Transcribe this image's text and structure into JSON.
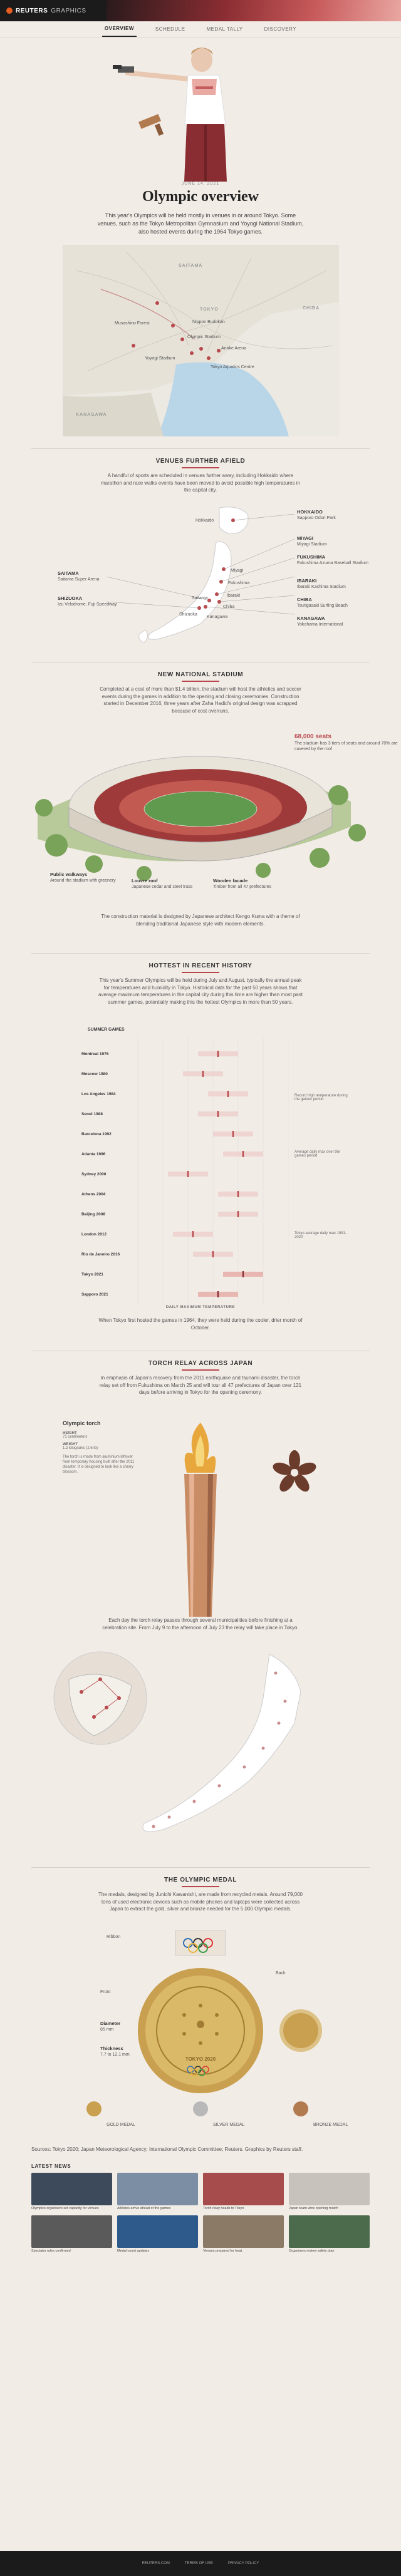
{
  "header": {
    "brand": "REUTERS",
    "brand_sub": "GRAPHICS"
  },
  "nav": {
    "items": [
      "OVERVIEW",
      "SCHEDULE",
      "MEDAL TALLY",
      "DISCOVERY"
    ]
  },
  "title_block": {
    "date": "JUNE 14, 2021",
    "title": "Olympic overview",
    "intro": "This year's Olympics will be held mostly in venues in or around Tokyo. Some venues, such as the Tokyo Metropolitan Gymnasium and Yoyogi National Stadium, also hosted events during the 1964 Tokyo games."
  },
  "map": {
    "regions": [
      "SAITAMA",
      "TOKYO",
      "CHIBA",
      "KANAGAWA"
    ],
    "venues": [
      "Olympic Stadium",
      "Tokyo Aquatics Centre",
      "Ariake Arena",
      "Musashino Forest",
      "Nippon Budokan",
      "Yoyogi Stadium"
    ]
  },
  "away": {
    "title": "VENUES FURTHER AFIELD",
    "text": "A handful of sports are scheduled in venues further away, including Hokkaido where marathon and race walks events have been moved to avoid possible high temperatures in the capital city.",
    "left": [
      {
        "name": "SAITAMA",
        "desc": "Saitama Super Arena"
      },
      {
        "name": "SHIZUOKA",
        "desc": "Izu Velodrome, Fuji Speedway"
      }
    ],
    "right": [
      {
        "name": "HOKKAIDO",
        "desc": "Sapporo Odori Park"
      },
      {
        "name": "MIYAGI",
        "desc": "Miyagi Stadium"
      },
      {
        "name": "FUKUSHIMA",
        "desc": "Fukushima Azuma Baseball Stadium"
      },
      {
        "name": "IBARAKI",
        "desc": "Ibaraki Kashima Stadium"
      },
      {
        "name": "CHIBA",
        "desc": "Tsurigasaki Surfing Beach"
      },
      {
        "name": "KANAGAWA",
        "desc": "Yokohama International"
      }
    ],
    "map_labels": [
      "Hokkaido",
      "Miyagi",
      "Fukushima",
      "Ibaraki",
      "Saitama",
      "Chiba",
      "Shizuoka",
      "Kanagawa"
    ]
  },
  "stadium": {
    "title": "NEW NATIONAL STADIUM",
    "text": "Completed at a cost of more than $1.4 billion, the stadium will host the athletics and soccer events during the games in addition to the opening and closing ceremonies. Construction started in December 2016, three years after Zaha Hadid's original design was scrapped because of cost overruns.",
    "capacity_label": "68,000 seats",
    "capacity_desc": "The stadium has 3 tiers of seats and around 70% are covered by the roof",
    "labels": [
      {
        "title": "Public walkways",
        "desc": "Around the stadium with greenery"
      },
      {
        "title": "Louvre roof",
        "desc": "Japanese cedar and steel truss"
      },
      {
        "title": "Wooden facade",
        "desc": "Timber from all 47 prefectures"
      }
    ],
    "caption": "The construction material is designed by Japanese architect Kengo Kuma with a theme of blending traditional Japanese style with modern elements."
  },
  "heat": {
    "title": "HOTTEST IN RECENT HISTORY",
    "text": "This year's Summer Olympics will be held during July and August, typically the annual peak for temperatures and humidity in Tokyo. Historical data for the past 50 years shows that average maximum temperatures in the capital city during this time are higher than most past summer games, potentially making this the hottest Olympics in more than 50 years.",
    "col_header": "SUMMER GAMES",
    "axis_label": "DAILY MAXIMUM TEMPERATURE",
    "note": "When Tokyo first hosted the games in 1964, they were held during the cooler, drier month of October.",
    "annotations": [
      "Record high temperature during the games period",
      "Average daily max over the games period",
      "Tokyo average daily max 1991-2020"
    ]
  },
  "chart_data": {
    "type": "scatter",
    "title": "HOTTEST IN RECENT HISTORY",
    "xlabel": "DAILY MAXIMUM TEMPERATURE",
    "x_unit": "°C",
    "xlim": [
      10,
      40
    ],
    "categories": [
      "Montreal 1976",
      "Moscow 1980",
      "Los Angeles 1984",
      "Seoul 1988",
      "Barcelona 1992",
      "Atlanta 1996",
      "Sydney 2000",
      "Athens 2004",
      "Beijing 2008",
      "London 2012",
      "Rio de Janeiro 2016",
      "Tokyo 2021",
      "Sapporo 2021"
    ],
    "series": [
      {
        "name": "Average daily max",
        "values": [
          26,
          23,
          28,
          26,
          29,
          31,
          20,
          30,
          30,
          21,
          25,
          31,
          26
        ]
      }
    ]
  },
  "torch": {
    "title": "TORCH RELAY ACROSS JAPAN",
    "text": "In emphasis of Japan's recovery from the 2011 earthquake and tsunami disaster, the torch relay set off from Fukushima on March 25 and will tour all 47 prefectures of Japan over 121 days before arriving in Tokyo for the opening ceremony.",
    "torch_title": "Olympic torch",
    "height_label": "HEIGHT",
    "height": "71 centimeters",
    "weight_label": "WEIGHT",
    "weight": "1.2 kilograms (2.6 lb)",
    "desc": "The torch is made from aluminium leftover from temporary housing built after the 2011 disaster. It is designed to look like a cherry blossom.",
    "relay_note": "Each day the torch relay passes through several municipalities before finishing at a celebration site. From July 9 to the afternoon of July 23 the relay will take place in Tokyo."
  },
  "medal": {
    "title": "THE OLYMPIC MEDAL",
    "text": "The medals, designed by Junichi Kawanishi, are made from recycled metals. Around 79,000 tons of used electronic devices such as mobile phones and laptops were collected across Japan to extract the gold, silver and bronze needed for the 5,000 Olympic medals.",
    "ribbon_label": "Ribbon",
    "front_label": "Front",
    "back_label": "Back",
    "specs": [
      {
        "label": "Diameter",
        "value": "85 mm"
      },
      {
        "label": "Thickness",
        "value": "7.7 to 12.1 mm"
      }
    ],
    "metals": [
      "GOLD MEDAL",
      "SILVER MEDAL",
      "BRONZE MEDAL"
    ]
  },
  "credits": {
    "text": "Sources: Tokyo 2020; Japan Meteorological Agency; International Olympic Committee; Reuters. Graphics by Reuters staff."
  },
  "latest": {
    "title": "LATEST NEWS",
    "items": [
      "Olympics organisers set capacity for venues",
      "Athletes arrive ahead of the games",
      "Torch relay heads to Tokyo",
      "Japan team wins opening match",
      "Spectator rules confirmed",
      "Medal count updates",
      "Venues prepared for heat",
      "Organisers review safety plan"
    ]
  },
  "footer": {
    "links": [
      "REUTERS.COM",
      "TERMS OF USE",
      "PRIVACY POLICY"
    ]
  },
  "colors": {
    "accent": "#b8484c",
    "gold": "#c9a04f"
  }
}
